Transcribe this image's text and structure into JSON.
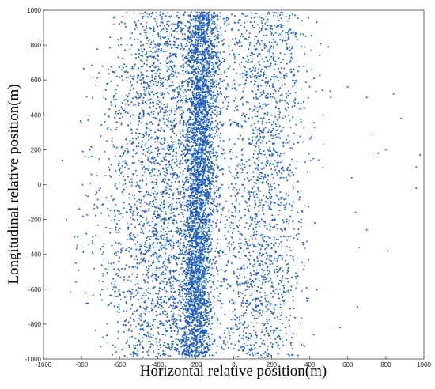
{
  "chart_data": {
    "type": "scatter",
    "title": "",
    "xlabel": "Horizontal relative position(m)",
    "ylabel": "Longitudinal relative position(m)",
    "xlim": [
      -1000,
      1000
    ],
    "ylim": [
      -1000,
      1000
    ],
    "xticks": [
      "-1000",
      "-800",
      "-600",
      "-400",
      "-200",
      "0",
      "200",
      "400",
      "600",
      "800",
      "1000"
    ],
    "yticks": [
      "-1000",
      "-800",
      "-600",
      "-400",
      "-200",
      "0",
      "200",
      "400",
      "600",
      "800",
      "1000"
    ],
    "grid": false,
    "legend": "none",
    "marker_color": "#1f5fbf",
    "series": [
      {
        "description": "Dense scatter cloud of relative vehicle positions; dense vertical band centered near x=-180, sparser spread from x=-800 to x=400, scattered outliers beyond x=400",
        "clusters": [
          {
            "x_center": -180,
            "x_spread": 40,
            "y_range": [
              -990,
              990
            ],
            "count": 3200
          },
          {
            "x_center": -330,
            "x_spread": 150,
            "y_range": [
              -990,
              990
            ],
            "count": 2800
          },
          {
            "x_center": 160,
            "x_spread": 110,
            "y_range": [
              -990,
              990
            ],
            "count": 1700
          },
          {
            "x_center": -620,
            "x_spread": 90,
            "y_range": [
              -700,
              700
            ],
            "count": 250
          }
        ],
        "outliers": [
          [
            -1000,
            410
          ],
          [
            -900,
            140
          ],
          [
            -880,
            -200
          ],
          [
            -820,
            -300
          ],
          [
            -780,
            -620
          ],
          [
            470,
            400
          ],
          [
            470,
            230
          ],
          [
            510,
            500
          ],
          [
            560,
            -820
          ],
          [
            600,
            560
          ],
          [
            620,
            40
          ],
          [
            640,
            -160
          ],
          [
            660,
            -360
          ],
          [
            700,
            -260
          ],
          [
            700,
            500
          ],
          [
            730,
            290
          ],
          [
            760,
            180
          ],
          [
            800,
            200
          ],
          [
            810,
            -380
          ],
          [
            840,
            520
          ],
          [
            880,
            380
          ],
          [
            960,
            100
          ],
          [
            960,
            -20
          ],
          [
            980,
            170
          ],
          [
            650,
            -700
          ]
        ]
      }
    ]
  }
}
